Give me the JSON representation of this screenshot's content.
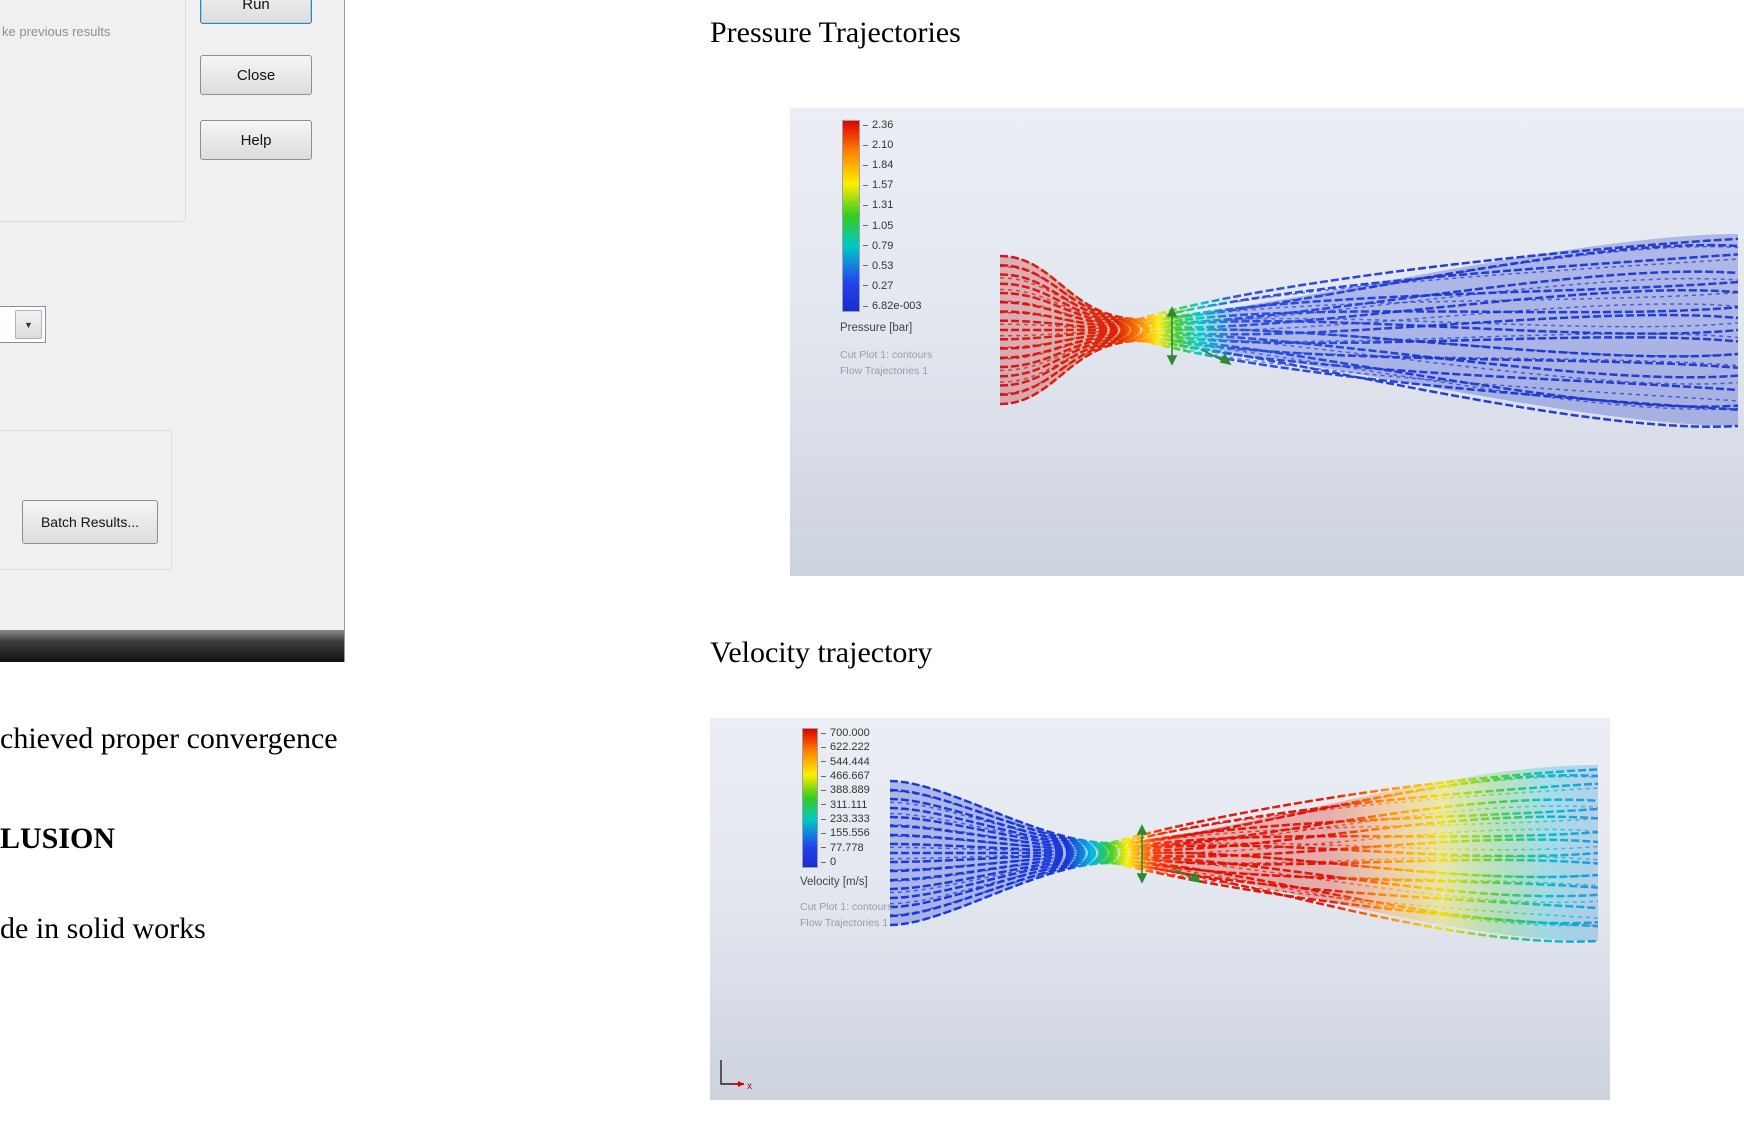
{
  "dialog": {
    "note": "ke previous results",
    "run_label": "Run",
    "close_label": "Close",
    "help_label": "Help",
    "batch_label": "Batch Results..."
  },
  "icons": {
    "dropdown_arrow": "▼"
  },
  "body_text": {
    "convergence_line": "chieved proper convergence",
    "conclusion_heading": "LUSION",
    "solidworks_line": "de in solid works"
  },
  "pressure": {
    "title": "Pressure Trajectories",
    "legend": [
      "2.36",
      "2.10",
      "1.84",
      "1.57",
      "1.31",
      "1.05",
      "0.79",
      "0.53",
      "0.27",
      "6.82e-003"
    ],
    "unit": "Pressure [bar]",
    "caption1": "Cut Plot 1: contours",
    "caption2": "Flow Trajectories 1"
  },
  "velocity": {
    "title": "Velocity trajectory",
    "legend": [
      "700.000",
      "622.222",
      "544.444",
      "466.667",
      "388.889",
      "311.111",
      "233.333",
      "155.556",
      "77.778",
      "0"
    ],
    "unit": "Velocity [m/s]",
    "caption1": "Cut Plot 1: contours",
    "caption2": "Flow Trajectories 1",
    "axis_x_label": "x"
  },
  "colors": {
    "legend_top_red": "#e00000",
    "legend_bottom_blue": "#1a2bd0",
    "viewport_bg_top": "#eceef5",
    "viewport_bg_bottom": "#ccd2de",
    "annotation_green": "#2d8a2d"
  }
}
